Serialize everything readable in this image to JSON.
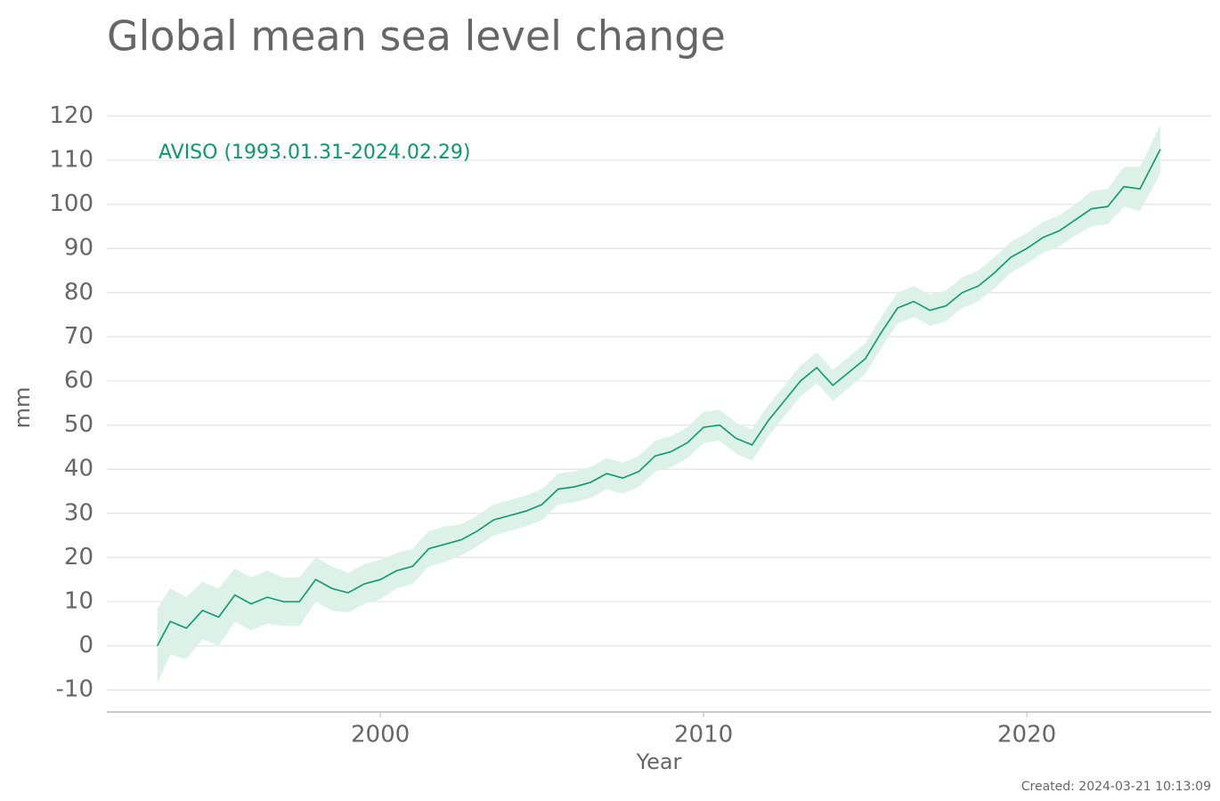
{
  "chart_data": {
    "type": "line",
    "title": "Global mean sea level change",
    "x_label": "Year",
    "y_label": "mm",
    "footer": "Created: 2024-03-21 10:13:09",
    "xlim": [
      1991.54,
      2025.7
    ],
    "xticks": [
      2000,
      2010,
      2020
    ],
    "ylim": [
      -15,
      125
    ],
    "yticks": [
      -10,
      0,
      10,
      20,
      30,
      40,
      50,
      60,
      70,
      80,
      90,
      100,
      110,
      120
    ],
    "grid": true,
    "x": [
      1993.1,
      1993.5,
      1994.0,
      1994.5,
      1995.0,
      1995.5,
      1996.0,
      1996.5,
      1997.0,
      1997.5,
      1998.0,
      1998.5,
      1999.0,
      1999.5,
      2000.0,
      2000.5,
      2001.0,
      2001.5,
      2002.0,
      2002.5,
      2003.0,
      2003.5,
      2004.0,
      2004.5,
      2005.0,
      2005.5,
      2006.0,
      2006.5,
      2007.0,
      2007.5,
      2008.0,
      2008.5,
      2009.0,
      2009.5,
      2010.0,
      2010.5,
      2011.0,
      2011.5,
      2012.0,
      2012.5,
      2013.0,
      2013.5,
      2014.0,
      2014.5,
      2015.0,
      2015.5,
      2016.0,
      2016.5,
      2017.0,
      2017.5,
      2018.0,
      2018.5,
      2019.0,
      2019.5,
      2020.0,
      2020.5,
      2021.0,
      2021.5,
      2022.0,
      2022.5,
      2023.0,
      2023.5,
      2024.13
    ],
    "series": [
      {
        "name": "AVISO (1993.01.31-2024.02.29)",
        "color": "#0a9a6a",
        "band_color": "#dcf2e9",
        "values": [
          0,
          5.5,
          4,
          8,
          6.5,
          11.5,
          9.5,
          11,
          10,
          10,
          15,
          13,
          12,
          14,
          15,
          17,
          18,
          22,
          23,
          24,
          26,
          28.5,
          29.5,
          30.5,
          32,
          35.5,
          36,
          37,
          39,
          38,
          39.5,
          43,
          44,
          46,
          49.5,
          50,
          47,
          45.5,
          51,
          55.5,
          60,
          63,
          59,
          62,
          65,
          71,
          76.5,
          78,
          76,
          77,
          80,
          81.5,
          84.5,
          88,
          90,
          92.5,
          94,
          96.5,
          99,
          99.5,
          104,
          103.5,
          112.5
        ],
        "error": [
          8.5,
          7.5,
          7,
          6.5,
          6.5,
          6,
          6,
          6,
          5.5,
          5.5,
          5,
          5,
          4.5,
          4.5,
          4.5,
          4,
          4,
          4,
          4,
          3.5,
          3.5,
          3.5,
          3.5,
          3.5,
          3.5,
          3.5,
          3.5,
          3.5,
          3.5,
          3.5,
          3.5,
          3.5,
          3.5,
          3.5,
          3.5,
          3.5,
          3.5,
          3.5,
          3.5,
          3.5,
          3.5,
          3.5,
          3.5,
          3.5,
          3.5,
          3.5,
          3.5,
          3.5,
          3.5,
          3.5,
          3.5,
          3.5,
          3.5,
          3.5,
          3.5,
          3.5,
          3.5,
          3.5,
          4,
          4,
          4.5,
          5,
          5.5
        ]
      }
    ]
  }
}
